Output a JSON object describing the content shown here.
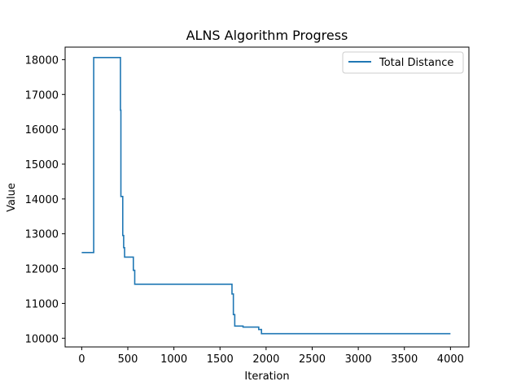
{
  "chart_data": {
    "type": "line",
    "title": "ALNS Algorithm Progress",
    "xlabel": "Iteration",
    "ylabel": "Value",
    "xlim": [
      -180,
      4200
    ],
    "ylim": [
      9750,
      18360
    ],
    "xticks": [
      0,
      500,
      1000,
      1500,
      2000,
      2500,
      3000,
      3500,
      4000
    ],
    "yticks": [
      10000,
      11000,
      12000,
      13000,
      14000,
      15000,
      16000,
      17000,
      18000
    ],
    "grid": false,
    "legend_position": "top-right",
    "series": [
      {
        "name": "Total Distance",
        "color": "#1f77b4",
        "step": true,
        "x": [
          0,
          130,
          420,
          425,
          430,
          445,
          455,
          465,
          470,
          550,
          560,
          575,
          1570,
          1630,
          1645,
          1660,
          1700,
          1750,
          1870,
          1920,
          1950,
          4000
        ],
        "y": [
          12460,
          18060,
          16550,
          14070,
          14070,
          12950,
          12600,
          12330,
          12330,
          12330,
          11950,
          11550,
          11550,
          11270,
          10680,
          10350,
          10350,
          10320,
          10320,
          10250,
          10130,
          10130
        ]
      }
    ]
  }
}
